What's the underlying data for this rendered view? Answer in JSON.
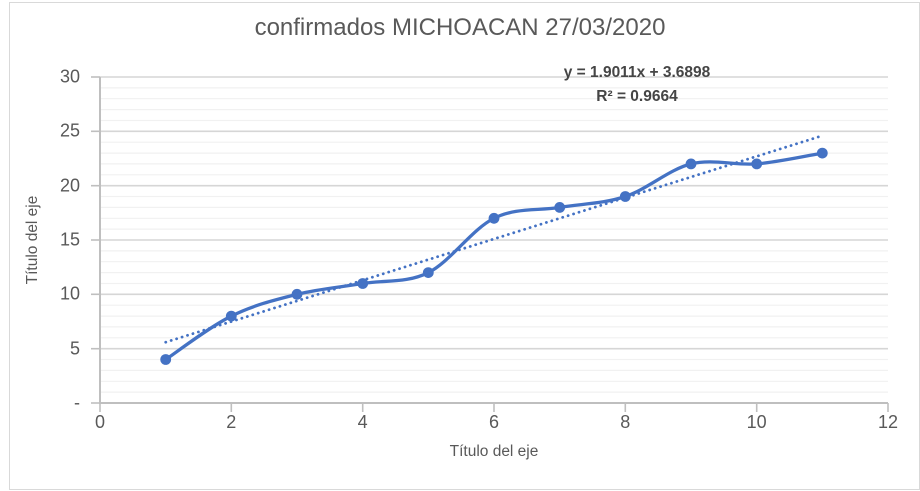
{
  "chart": {
    "title": "confirmados MICHOACAN 27/03/2020",
    "y_axis": {
      "title": "Título del eje"
    },
    "x_axis": {
      "title": "Título del eje"
    }
  },
  "chart_data": {
    "type": "line",
    "title": "confirmados MICHOACAN 27/03/2020",
    "xlabel": "Título del eje",
    "ylabel": "Título del eje",
    "x": [
      1,
      2,
      3,
      4,
      5,
      6,
      7,
      8,
      9,
      10,
      11
    ],
    "y": [
      4,
      8,
      10,
      11,
      12,
      17,
      18,
      19,
      22,
      22,
      23
    ],
    "xlim": [
      0,
      12
    ],
    "ylim": [
      0,
      30
    ],
    "x_ticks": [
      0,
      2,
      4,
      6,
      8,
      10,
      12
    ],
    "x_tick_labels": [
      "0",
      "2",
      "4",
      "6",
      "8",
      "10",
      "12"
    ],
    "y_ticks": [
      0,
      5,
      10,
      15,
      20,
      25,
      30
    ],
    "y_tick_labels": [
      "-",
      "5",
      "10",
      "15",
      "20",
      "25",
      "30"
    ],
    "grid": {
      "horizontal_minor_interval": 1,
      "horizontal_major_interval": 5,
      "vertical": false
    },
    "line_style": "smooth",
    "markers": "circle",
    "trendline": {
      "type": "linear",
      "slope": 1.9011,
      "intercept": 3.6898,
      "range_x": [
        1,
        11
      ],
      "equation_label": "y = 1.9011x + 3.6898",
      "r_squared_label": "R² = 0.9664",
      "r_squared": 0.9664,
      "style": "dotted"
    },
    "legend": "none",
    "colors": {
      "series": "#4472C4",
      "trendline": "#4472C4",
      "title_text": "#595959",
      "axis_text": "#595959",
      "equation_text": "#454545",
      "axis_line": "#BFBFBF",
      "major_gridline": "#D6D6D6",
      "minor_gridline": "#F1F1F1",
      "chart_border": "#D9D9D9"
    }
  }
}
